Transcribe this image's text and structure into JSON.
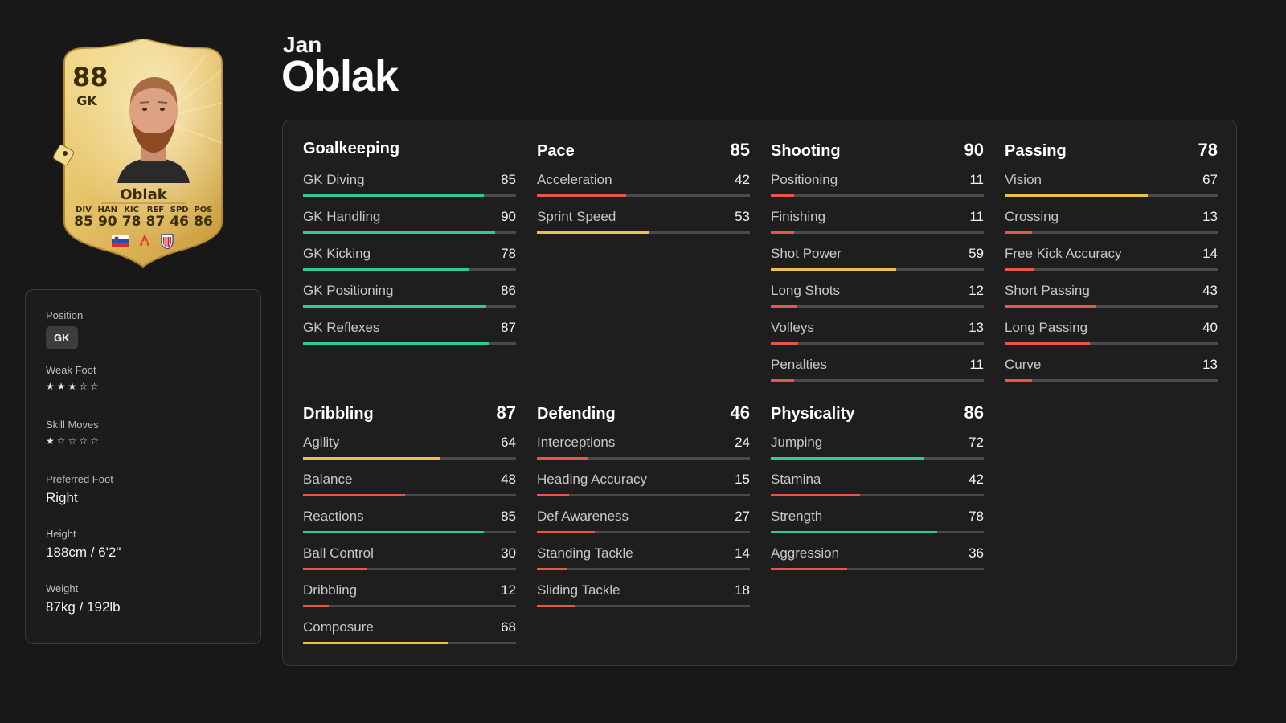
{
  "card": {
    "rating": "88",
    "position": "GK",
    "name": "Oblak",
    "stats": [
      {
        "label": "DIV",
        "value": "85"
      },
      {
        "label": "HAN",
        "value": "90"
      },
      {
        "label": "KIC",
        "value": "78"
      },
      {
        "label": "REF",
        "value": "87"
      },
      {
        "label": "SPD",
        "value": "46"
      },
      {
        "label": "POS",
        "value": "86"
      }
    ]
  },
  "player": {
    "first_name": "Jan",
    "last_name": "Oblak"
  },
  "info": {
    "position_label": "Position",
    "position_value": "GK",
    "weak_foot_label": "Weak Foot",
    "weak_foot_stars": 3,
    "skill_moves_label": "Skill Moves",
    "skill_moves_stars": 1,
    "preferred_foot_label": "Preferred Foot",
    "preferred_foot_value": "Right",
    "height_label": "Height",
    "height_value": "188cm / 6'2\"",
    "weight_label": "Weight",
    "weight_value": "87kg / 192lb"
  },
  "colors": {
    "high": "#2ecc8f",
    "mid": "#e8c04a",
    "low": "#e8554a"
  },
  "groups": [
    {
      "id": "goalkeeping",
      "title": "Goalkeeping",
      "value": "",
      "stats": [
        {
          "name": "GK Diving",
          "value": 85
        },
        {
          "name": "GK Handling",
          "value": 90
        },
        {
          "name": "GK Kicking",
          "value": 78
        },
        {
          "name": "GK Positioning",
          "value": 86
        },
        {
          "name": "GK Reflexes",
          "value": 87
        }
      ]
    },
    {
      "id": "pace",
      "title": "Pace",
      "value": "85",
      "stats": [
        {
          "name": "Acceleration",
          "value": 42
        },
        {
          "name": "Sprint Speed",
          "value": 53
        }
      ]
    },
    {
      "id": "shooting",
      "title": "Shooting",
      "value": "90",
      "stats": [
        {
          "name": "Positioning",
          "value": 11
        },
        {
          "name": "Finishing",
          "value": 11
        },
        {
          "name": "Shot Power",
          "value": 59
        },
        {
          "name": "Long Shots",
          "value": 12
        },
        {
          "name": "Volleys",
          "value": 13
        },
        {
          "name": "Penalties",
          "value": 11
        }
      ]
    },
    {
      "id": "passing",
      "title": "Passing",
      "value": "78",
      "stats": [
        {
          "name": "Vision",
          "value": 67
        },
        {
          "name": "Crossing",
          "value": 13
        },
        {
          "name": "Free Kick Accuracy",
          "value": 14
        },
        {
          "name": "Short Passing",
          "value": 43
        },
        {
          "name": "Long Passing",
          "value": 40
        },
        {
          "name": "Curve",
          "value": 13
        }
      ]
    },
    {
      "id": "dribbling",
      "title": "Dribbling",
      "value": "87",
      "stats": [
        {
          "name": "Agility",
          "value": 64
        },
        {
          "name": "Balance",
          "value": 48
        },
        {
          "name": "Reactions",
          "value": 85
        },
        {
          "name": "Ball Control",
          "value": 30
        },
        {
          "name": "Dribbling",
          "value": 12
        },
        {
          "name": "Composure",
          "value": 68
        }
      ]
    },
    {
      "id": "defending",
      "title": "Defending",
      "value": "46",
      "stats": [
        {
          "name": "Interceptions",
          "value": 24
        },
        {
          "name": "Heading Accuracy",
          "value": 15
        },
        {
          "name": "Def Awareness",
          "value": 27
        },
        {
          "name": "Standing Tackle",
          "value": 14
        },
        {
          "name": "Sliding Tackle",
          "value": 18
        }
      ]
    },
    {
      "id": "physicality",
      "title": "Physicality",
      "value": "86",
      "stats": [
        {
          "name": "Jumping",
          "value": 72
        },
        {
          "name": "Stamina",
          "value": 42
        },
        {
          "name": "Strength",
          "value": 78
        },
        {
          "name": "Aggression",
          "value": 36
        }
      ]
    }
  ]
}
